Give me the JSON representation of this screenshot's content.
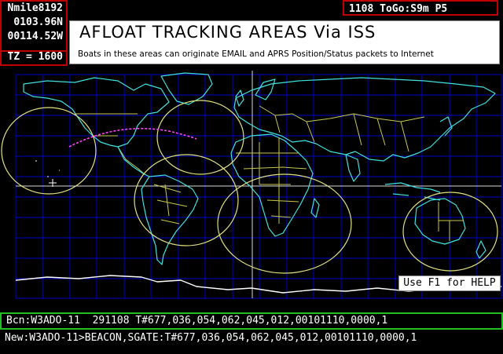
{
  "header": {
    "grid_label": "Nmile8192",
    "latitude": "0103.96N",
    "longitude": "00114.52W",
    "timezone": "TZ = 1600",
    "status": "1108 ToGo:S9m P5"
  },
  "title": {
    "main": "AFLOAT TRACKING AREAS Via ISS",
    "subtitle": "Boats in these areas can originate EMAIL and APRS Position/Status packets to Internet"
  },
  "help": "Use F1 for HELP",
  "bottom": {
    "beacon_line": "Bcn:W3ADO-11  291108 T#677,036,054,062,045,012,00101110,0000,1",
    "new_line": "New:W3ADO-11>BEACON,SGATE:T#677,036,054,062,045,012,00101110,0000,1"
  },
  "colors": {
    "grid": "#0000c8",
    "coastline": "#40e0e0",
    "borders": "#c8c850",
    "coverage_ellipse": "#e0e080",
    "iss_track": "#ff40ff",
    "snow": "#ffffff"
  }
}
